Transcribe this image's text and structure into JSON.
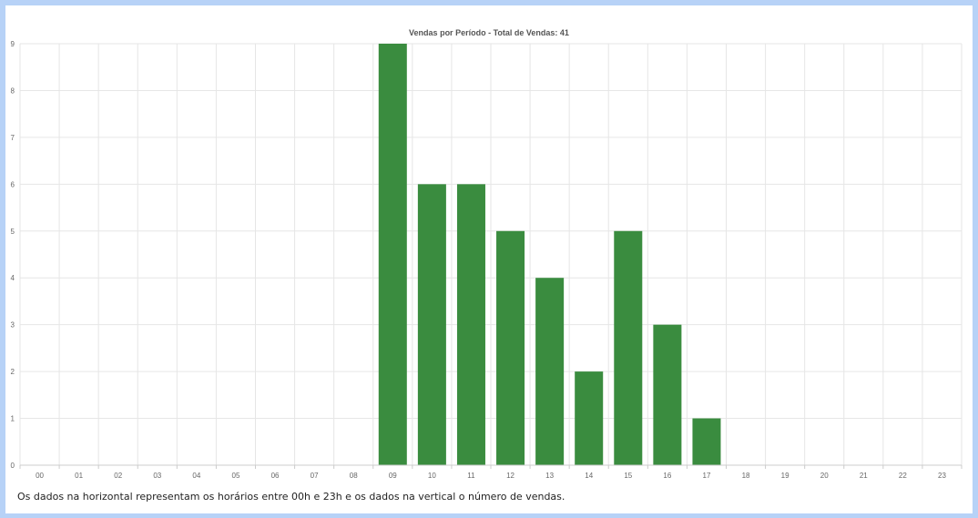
{
  "chart_data": {
    "type": "bar",
    "title": "Vendas por Período - Total de Vendas: 41",
    "xlabel": "",
    "ylabel": "",
    "categories": [
      "00",
      "01",
      "02",
      "03",
      "04",
      "05",
      "06",
      "07",
      "08",
      "09",
      "10",
      "11",
      "12",
      "13",
      "14",
      "15",
      "16",
      "17",
      "18",
      "19",
      "20",
      "21",
      "22",
      "23"
    ],
    "values": [
      0,
      0,
      0,
      0,
      0,
      0,
      0,
      0,
      0,
      9,
      6,
      6,
      5,
      4,
      2,
      5,
      3,
      1,
      0,
      0,
      0,
      0,
      0,
      0
    ],
    "ylim": [
      0,
      9
    ],
    "yticks": [
      0,
      1,
      2,
      3,
      4,
      5,
      6,
      7,
      8,
      9
    ],
    "grid": true,
    "bar_color": "#3a8c3f",
    "grid_color": "#e6e6e6"
  },
  "footnote": "Os dados na horizontal representam os horários entre 00h e 23h e os dados na vertical o número de vendas."
}
